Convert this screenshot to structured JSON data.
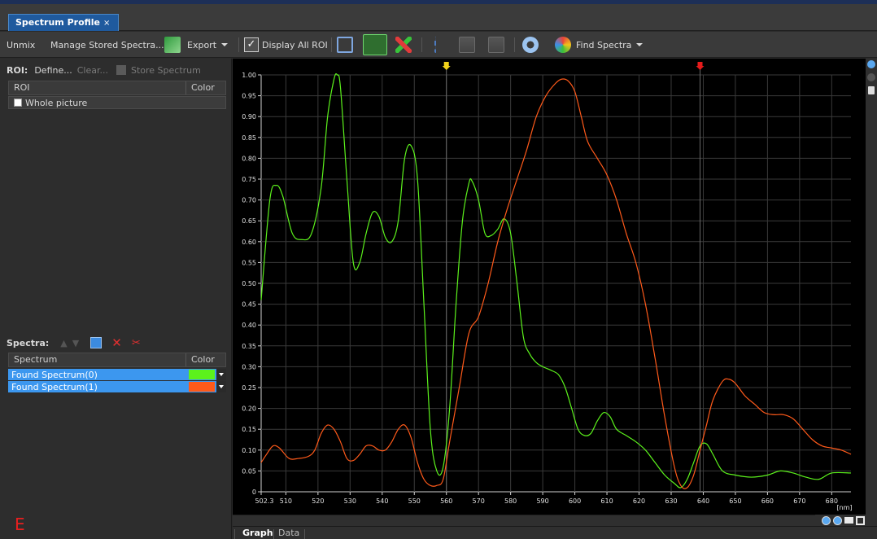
{
  "window": {
    "tab_title": "Spectrum Profile",
    "tab_close": "×"
  },
  "toolbar": {
    "unmix": "Unmix",
    "manage_stored": "Manage Stored Spectra...",
    "export": "Export",
    "display_all_roi": "Display All ROI",
    "display_all_roi_checked": true,
    "find_spectra": "Find Spectra"
  },
  "roi_panel": {
    "label": "ROI:",
    "define": "Define...",
    "clear": "Clear...",
    "store": "Store Spectrum",
    "columns": [
      "ROI",
      "Color"
    ],
    "rows": [
      {
        "name": "Whole picture",
        "checked": false
      }
    ]
  },
  "spectra_panel": {
    "label": "Spectra:",
    "columns": [
      "Spectrum",
      "Color"
    ],
    "rows": [
      {
        "name": "Found Spectrum(0)",
        "color": "#5cf21c"
      },
      {
        "name": "Found Spectrum(1)",
        "color": "#ff5a1a"
      }
    ]
  },
  "corner_marker": "E",
  "chart_data": {
    "type": "line",
    "xunit": "[nm]",
    "xlim": [
      502.3,
      686
    ],
    "ylim": [
      0,
      1.0
    ],
    "xticks": [
      "502.3",
      "510",
      "520",
      "530",
      "540",
      "550",
      "560",
      "570",
      "580",
      "590",
      "600",
      "610",
      "620",
      "630",
      "640",
      "650",
      "660",
      "670",
      "680"
    ],
    "yticks": [
      "0",
      "0.05",
      "0.10",
      "0.15",
      "0.20",
      "0.25",
      "0.30",
      "0.35",
      "0.40",
      "0.45",
      "0.50",
      "0.55",
      "0.60",
      "0.65",
      "0.70",
      "0.75",
      "0.80",
      "0.85",
      "0.90",
      "0.95",
      "1.00"
    ],
    "markers": [
      {
        "x": 560,
        "color": "#f2d21a"
      },
      {
        "x": 639,
        "color": "#e51b1b"
      }
    ],
    "grid": true,
    "series": [
      {
        "color": "#5cf21c",
        "points": [
          [
            502.3,
            0.46
          ],
          [
            505,
            0.7
          ],
          [
            507,
            0.735
          ],
          [
            509,
            0.71
          ],
          [
            512,
            0.62
          ],
          [
            515,
            0.605
          ],
          [
            518,
            0.62
          ],
          [
            521,
            0.73
          ],
          [
            523,
            0.9
          ],
          [
            525,
            0.99
          ],
          [
            526,
            1.0
          ],
          [
            527,
            0.97
          ],
          [
            529,
            0.75
          ],
          [
            531,
            0.55
          ],
          [
            533,
            0.55
          ],
          [
            535,
            0.62
          ],
          [
            537,
            0.67
          ],
          [
            539,
            0.66
          ],
          [
            541,
            0.61
          ],
          [
            543,
            0.6
          ],
          [
            545,
            0.65
          ],
          [
            547,
            0.8
          ],
          [
            549,
            0.83
          ],
          [
            551,
            0.75
          ],
          [
            553,
            0.45
          ],
          [
            555,
            0.15
          ],
          [
            557,
            0.05
          ],
          [
            559,
            0.06
          ],
          [
            561,
            0.2
          ],
          [
            563,
            0.45
          ],
          [
            565,
            0.65
          ],
          [
            567,
            0.74
          ],
          [
            568,
            0.745
          ],
          [
            570,
            0.7
          ],
          [
            572,
            0.62
          ],
          [
            574,
            0.615
          ],
          [
            576,
            0.63
          ],
          [
            578,
            0.655
          ],
          [
            580,
            0.62
          ],
          [
            582,
            0.5
          ],
          [
            584,
            0.37
          ],
          [
            586,
            0.33
          ],
          [
            588,
            0.31
          ],
          [
            590,
            0.3
          ],
          [
            593,
            0.29
          ],
          [
            595,
            0.28
          ],
          [
            597,
            0.25
          ],
          [
            599,
            0.2
          ],
          [
            601,
            0.15
          ],
          [
            603,
            0.135
          ],
          [
            605,
            0.14
          ],
          [
            607,
            0.17
          ],
          [
            609,
            0.19
          ],
          [
            611,
            0.18
          ],
          [
            613,
            0.15
          ],
          [
            616,
            0.135
          ],
          [
            619,
            0.12
          ],
          [
            622,
            0.1
          ],
          [
            625,
            0.07
          ],
          [
            628,
            0.04
          ],
          [
            631,
            0.02
          ],
          [
            633,
            0.01
          ],
          [
            635,
            0.03
          ],
          [
            637,
            0.07
          ],
          [
            639,
            0.11
          ],
          [
            641,
            0.115
          ],
          [
            643,
            0.09
          ],
          [
            646,
            0.05
          ],
          [
            650,
            0.04
          ],
          [
            655,
            0.035
          ],
          [
            660,
            0.04
          ],
          [
            664,
            0.05
          ],
          [
            668,
            0.045
          ],
          [
            672,
            0.035
          ],
          [
            676,
            0.03
          ],
          [
            680,
            0.045
          ],
          [
            686,
            0.045
          ]
        ]
      },
      {
        "color": "#ff5a1a",
        "points": [
          [
            502.3,
            0.07
          ],
          [
            504,
            0.09
          ],
          [
            506,
            0.11
          ],
          [
            508,
            0.105
          ],
          [
            511,
            0.08
          ],
          [
            514,
            0.08
          ],
          [
            517,
            0.085
          ],
          [
            519,
            0.1
          ],
          [
            521,
            0.14
          ],
          [
            523,
            0.16
          ],
          [
            525,
            0.15
          ],
          [
            527,
            0.12
          ],
          [
            529,
            0.08
          ],
          [
            531,
            0.075
          ],
          [
            533,
            0.09
          ],
          [
            535,
            0.11
          ],
          [
            537,
            0.11
          ],
          [
            539,
            0.1
          ],
          [
            541,
            0.1
          ],
          [
            543,
            0.12
          ],
          [
            545,
            0.15
          ],
          [
            547,
            0.16
          ],
          [
            549,
            0.13
          ],
          [
            551,
            0.07
          ],
          [
            553,
            0.03
          ],
          [
            555,
            0.015
          ],
          [
            557,
            0.015
          ],
          [
            559,
            0.03
          ],
          [
            561,
            0.12
          ],
          [
            564,
            0.25
          ],
          [
            567,
            0.38
          ],
          [
            570,
            0.42
          ],
          [
            573,
            0.5
          ],
          [
            576,
            0.6
          ],
          [
            579,
            0.68
          ],
          [
            582,
            0.75
          ],
          [
            585,
            0.82
          ],
          [
            588,
            0.9
          ],
          [
            591,
            0.95
          ],
          [
            594,
            0.98
          ],
          [
            596,
            0.99
          ],
          [
            598,
            0.985
          ],
          [
            600,
            0.96
          ],
          [
            602,
            0.9
          ],
          [
            604,
            0.84
          ],
          [
            607,
            0.8
          ],
          [
            610,
            0.76
          ],
          [
            613,
            0.7
          ],
          [
            616,
            0.62
          ],
          [
            619,
            0.55
          ],
          [
            622,
            0.45
          ],
          [
            625,
            0.32
          ],
          [
            628,
            0.18
          ],
          [
            631,
            0.06
          ],
          [
            633,
            0.015
          ],
          [
            635,
            0.01
          ],
          [
            637,
            0.04
          ],
          [
            639,
            0.1
          ],
          [
            641,
            0.16
          ],
          [
            643,
            0.22
          ],
          [
            646,
            0.265
          ],
          [
            648,
            0.27
          ],
          [
            650,
            0.26
          ],
          [
            653,
            0.23
          ],
          [
            656,
            0.21
          ],
          [
            659,
            0.19
          ],
          [
            662,
            0.185
          ],
          [
            665,
            0.185
          ],
          [
            668,
            0.175
          ],
          [
            671,
            0.15
          ],
          [
            674,
            0.125
          ],
          [
            677,
            0.11
          ],
          [
            680,
            0.105
          ],
          [
            683,
            0.1
          ],
          [
            686,
            0.09
          ]
        ]
      }
    ]
  }
}
